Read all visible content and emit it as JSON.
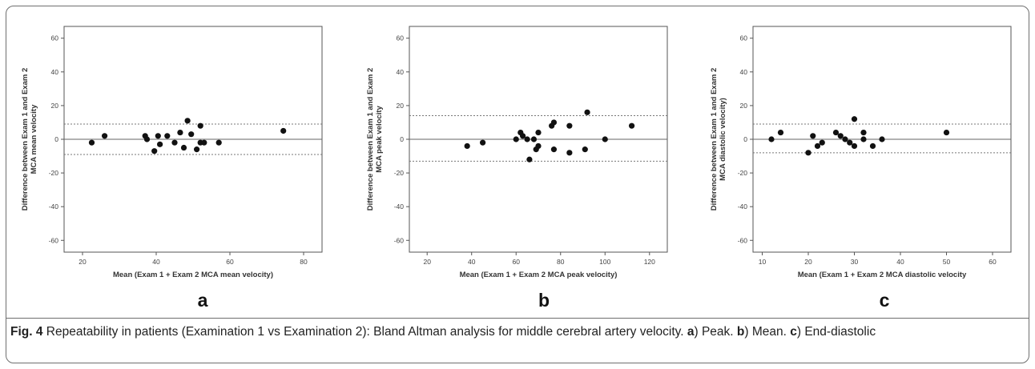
{
  "caption": {
    "fig_label": "Fig. 4",
    "text_1": " Repeatability in patients (Examination 1 vs Examination 2): Bland Altman analysis for middle cerebral artery velocity. ",
    "a_label": "a",
    "text_2": ") Peak. ",
    "b_label": "b",
    "text_3": ") Mean. ",
    "c_label": "c",
    "text_4": ") End-diastolic"
  },
  "colors": {
    "points": "#111111",
    "frame": "#6f6f6f",
    "axis": "#555555",
    "dotted_lines": "#777777"
  },
  "chart_data": [
    {
      "type": "scatter",
      "panel_label": "a",
      "xlabel": "Mean (Exam 1 + Exam 2 MCA mean velocity)",
      "ylabel": [
        "Difference between Exam 1 and Exam 2",
        "MCA mean velocity"
      ],
      "xlim": [
        15,
        85
      ],
      "ylim": [
        -67,
        67
      ],
      "xticks": [
        20,
        40,
        60,
        80
      ],
      "yticks": [
        -60,
        -40,
        -20,
        0,
        20,
        40,
        60
      ],
      "reference_lines": {
        "mean": 0,
        "upper_loa": 9,
        "lower_loa": -9
      },
      "points": [
        [
          22.5,
          -2
        ],
        [
          26,
          2
        ],
        [
          37,
          2
        ],
        [
          37.5,
          0
        ],
        [
          39.5,
          -7
        ],
        [
          40.5,
          2
        ],
        [
          41,
          -3
        ],
        [
          43,
          2
        ],
        [
          45,
          -2
        ],
        [
          46.5,
          4
        ],
        [
          47.5,
          -5
        ],
        [
          48.5,
          11
        ],
        [
          49.5,
          3
        ],
        [
          51,
          -6
        ],
        [
          52,
          8
        ],
        [
          52,
          -2
        ],
        [
          53,
          -2
        ],
        [
          57,
          -2
        ],
        [
          74.5,
          5
        ]
      ]
    },
    {
      "type": "scatter",
      "panel_label": "b",
      "xlabel": "Mean (Exam 1 + Exam 2 MCA peak velocity)",
      "ylabel": [
        "Difference between Exam 1 and Exam 2",
        "MCA peak velocity"
      ],
      "xlim": [
        12,
        128
      ],
      "ylim": [
        -67,
        67
      ],
      "xticks": [
        20,
        40,
        60,
        80,
        100,
        120
      ],
      "yticks": [
        -60,
        -40,
        -20,
        0,
        20,
        40,
        60
      ],
      "reference_lines": {
        "mean": 0,
        "upper_loa": 14,
        "lower_loa": -13
      },
      "points": [
        [
          38,
          -4
        ],
        [
          45,
          -2
        ],
        [
          60,
          0
        ],
        [
          62,
          4
        ],
        [
          63,
          2
        ],
        [
          65,
          0
        ],
        [
          66,
          -12
        ],
        [
          68,
          0
        ],
        [
          69,
          -6
        ],
        [
          70,
          -4
        ],
        [
          70,
          4
        ],
        [
          76,
          8
        ],
        [
          77,
          10
        ],
        [
          77,
          -6
        ],
        [
          84,
          8
        ],
        [
          84,
          -8
        ],
        [
          91,
          -6
        ],
        [
          92,
          16
        ],
        [
          100,
          0
        ],
        [
          112,
          8
        ]
      ]
    },
    {
      "type": "scatter",
      "panel_label": "c",
      "xlabel": "Mean (Exam 1 + Exam 2 MCA diastolic velocity",
      "ylabel": [
        "Difference between Exam 1 and Exam 2",
        "MCA diastolic velocity)"
      ],
      "xlim": [
        8,
        64
      ],
      "ylim": [
        -67,
        67
      ],
      "xticks": [
        10,
        20,
        30,
        40,
        50,
        60
      ],
      "yticks": [
        -60,
        -40,
        -20,
        0,
        20,
        40,
        60
      ],
      "reference_lines": {
        "mean": 0,
        "upper_loa": 9,
        "lower_loa": -8
      },
      "points": [
        [
          12,
          0
        ],
        [
          14,
          4
        ],
        [
          20,
          -8
        ],
        [
          21,
          2
        ],
        [
          22,
          -4
        ],
        [
          23,
          -2
        ],
        [
          26,
          4
        ],
        [
          27,
          2
        ],
        [
          28,
          0
        ],
        [
          29,
          -2
        ],
        [
          30,
          12
        ],
        [
          30,
          -4
        ],
        [
          32,
          4
        ],
        [
          32,
          0
        ],
        [
          34,
          -4
        ],
        [
          36,
          0
        ],
        [
          50,
          4
        ]
      ]
    }
  ]
}
